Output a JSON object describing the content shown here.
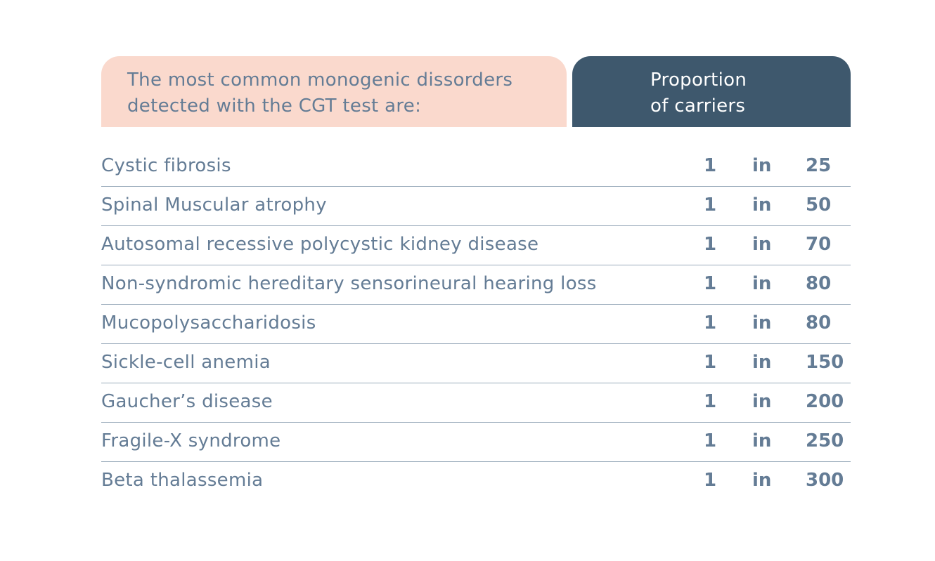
{
  "header": {
    "left_line1": "The most common monogenic dissorders",
    "left_line2": "detected with the CGT test are:",
    "right_line1": "Proportion",
    "right_line2": "of carriers"
  },
  "colors": {
    "header_left_bg": "#fad9cd",
    "header_right_bg": "#3e586d",
    "text": "#647c95",
    "divider": "#9aabbb"
  },
  "rows": [
    {
      "name": "Cystic fibrosis",
      "one": "1",
      "in": "in",
      "num": "25"
    },
    {
      "name": "Spinal Muscular atrophy",
      "one": "1",
      "in": "in",
      "num": "50"
    },
    {
      "name": "Autosomal recessive polycystic kidney disease",
      "one": "1",
      "in": "in",
      "num": "70"
    },
    {
      "name": "Non-syndromic hereditary sensorineural hearing loss",
      "one": "1",
      "in": "in",
      "num": "80"
    },
    {
      "name": "Mucopolysaccharidosis",
      "one": "1",
      "in": "in",
      "num": "80"
    },
    {
      "name": "Sickle-cell anemia",
      "one": "1",
      "in": "in",
      "num": "150"
    },
    {
      "name": "Gaucher’s disease",
      "one": "1",
      "in": "in",
      "num": "200"
    },
    {
      "name": "Fragile-X syndrome",
      "one": "1",
      "in": "in",
      "num": "250"
    },
    {
      "name": "Beta thalassemia",
      "one": "1",
      "in": "in",
      "num": "300"
    }
  ]
}
